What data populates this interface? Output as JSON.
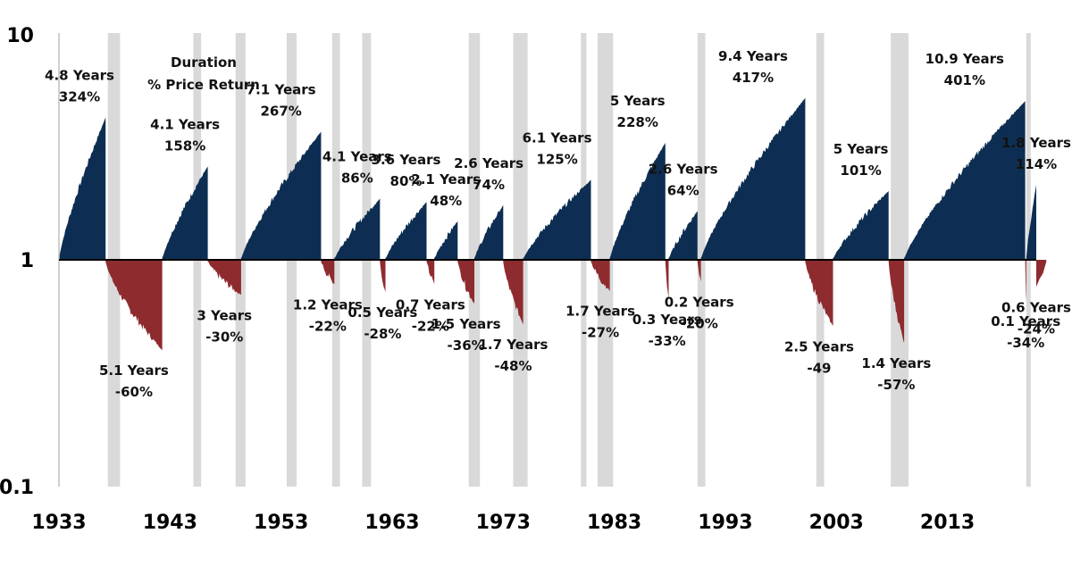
{
  "chart_data": {
    "type": "area",
    "title": "",
    "xlabel": "",
    "ylabel": "",
    "scale": "log",
    "baseline": 1,
    "ylim": [
      0.1,
      10
    ],
    "xlim": [
      1933,
      2021
    ],
    "yticks": [
      {
        "value": 10,
        "label": "10"
      },
      {
        "value": 1,
        "label": "1"
      },
      {
        "value": 0.1,
        "label": "0.1"
      }
    ],
    "xticks": [
      {
        "value": 1933,
        "label": "1933"
      },
      {
        "value": 1943,
        "label": "1943"
      },
      {
        "value": 1953,
        "label": "1953"
      },
      {
        "value": 1963,
        "label": "1963"
      },
      {
        "value": 1973,
        "label": "1973"
      },
      {
        "value": 1983,
        "label": "1983"
      },
      {
        "value": 1993,
        "label": "1993"
      },
      {
        "value": 2003,
        "label": "2003"
      },
      {
        "value": 2013,
        "label": "2013"
      }
    ],
    "colors": {
      "bull": "#0d2e52",
      "bear": "#8e2b2f",
      "recession": "#d9d9d9",
      "axis": "#000000"
    },
    "recessions": [
      [
        1937.4,
        1938.5
      ],
      [
        1945.1,
        1945.8
      ],
      [
        1948.9,
        1949.8
      ],
      [
        1953.5,
        1954.4
      ],
      [
        1957.6,
        1958.3
      ],
      [
        1960.3,
        1961.1
      ],
      [
        1969.9,
        1970.9
      ],
      [
        1973.9,
        1975.2
      ],
      [
        1980.0,
        1980.5
      ],
      [
        1981.5,
        1982.9
      ],
      [
        1990.5,
        1991.2
      ],
      [
        2001.2,
        2001.9
      ],
      [
        2007.9,
        2009.5
      ],
      [
        2020.1,
        2020.5
      ]
    ],
    "legend_title": [
      "Duration",
      "% Price Return"
    ],
    "cycles": [
      {
        "kind": "bull",
        "start": 1932.5,
        "end": 1937.2,
        "peak": 4.24,
        "duration": "4.8 Years",
        "change": "324%"
      },
      {
        "kind": "bear",
        "start": 1937.2,
        "end": 1942.3,
        "trough": 0.4,
        "duration": "5.1 Years",
        "change": "-60%"
      },
      {
        "kind": "bull",
        "start": 1942.3,
        "end": 1946.4,
        "peak": 2.58,
        "duration": "4.1 Years",
        "change": "158%"
      },
      {
        "kind": "bear",
        "start": 1946.4,
        "end": 1949.4,
        "trough": 0.7,
        "duration": "3 Years",
        "change": "-30%"
      },
      {
        "kind": "bull",
        "start": 1949.4,
        "end": 1956.6,
        "peak": 3.67,
        "duration": "7.1 Years",
        "change": "267%"
      },
      {
        "kind": "bear",
        "start": 1956.6,
        "end": 1957.8,
        "trough": 0.78,
        "duration": "1.2 Years",
        "change": "-22%"
      },
      {
        "kind": "bull",
        "start": 1957.8,
        "end": 1961.9,
        "peak": 1.86,
        "duration": "4.1 Years",
        "change": "86%"
      },
      {
        "kind": "bear",
        "start": 1961.9,
        "end": 1962.4,
        "trough": 0.72,
        "duration": "0.5 Years",
        "change": "-28%"
      },
      {
        "kind": "bull",
        "start": 1962.4,
        "end": 1966.1,
        "peak": 1.8,
        "duration": "3.6 Years",
        "change": "80%"
      },
      {
        "kind": "bear",
        "start": 1966.1,
        "end": 1966.8,
        "trough": 0.78,
        "duration": "0.7 Years",
        "change": "-22%"
      },
      {
        "kind": "bull",
        "start": 1966.8,
        "end": 1968.9,
        "peak": 1.48,
        "duration": "2.1 Years",
        "change": "48%"
      },
      {
        "kind": "bear",
        "start": 1968.9,
        "end": 1970.4,
        "trough": 0.64,
        "duration": "1.5 Years",
        "change": "-36%"
      },
      {
        "kind": "bull",
        "start": 1970.4,
        "end": 1973.0,
        "peak": 1.74,
        "duration": "2.6 Years",
        "change": "74%"
      },
      {
        "kind": "bear",
        "start": 1973.0,
        "end": 1974.8,
        "trough": 0.52,
        "duration": "1.7 Years",
        "change": "-48%"
      },
      {
        "kind": "bull",
        "start": 1974.8,
        "end": 1980.9,
        "peak": 2.25,
        "duration": "6.1 Years",
        "change": "125%"
      },
      {
        "kind": "bear",
        "start": 1980.9,
        "end": 1982.6,
        "trough": 0.73,
        "duration": "1.7 Years",
        "change": "-27%"
      },
      {
        "kind": "bull",
        "start": 1982.6,
        "end": 1987.6,
        "peak": 3.28,
        "duration": "5 Years",
        "change": "228%"
      },
      {
        "kind": "bear",
        "start": 1987.6,
        "end": 1987.9,
        "trough": 0.67,
        "duration": "0.3 Years",
        "change": "-33%"
      },
      {
        "kind": "bull",
        "start": 1987.9,
        "end": 1990.5,
        "peak": 1.64,
        "duration": "2.6 Years",
        "change": "64%"
      },
      {
        "kind": "bear",
        "start": 1990.5,
        "end": 1990.8,
        "trough": 0.8,
        "duration": "0.2 Years",
        "change": "-20%"
      },
      {
        "kind": "bull",
        "start": 1990.8,
        "end": 2000.2,
        "peak": 5.17,
        "duration": "9.4 Years",
        "change": "417%"
      },
      {
        "kind": "bear",
        "start": 2000.2,
        "end": 2002.7,
        "trough": 0.51,
        "duration": "2.5 Years",
        "change": "-49"
      },
      {
        "kind": "bull",
        "start": 2002.7,
        "end": 2007.7,
        "peak": 2.01,
        "duration": "5 Years",
        "change": "101%"
      },
      {
        "kind": "bear",
        "start": 2007.7,
        "end": 2009.1,
        "trough": 0.43,
        "duration": "1.4 Years",
        "change": "-57%"
      },
      {
        "kind": "bull",
        "start": 2009.1,
        "end": 2020.0,
        "peak": 5.01,
        "duration": "10.9 Years",
        "change": "401%"
      },
      {
        "kind": "bear",
        "start": 2020.0,
        "end": 2020.1,
        "trough": 0.66,
        "duration": "0.1 Years",
        "change": "-34%"
      },
      {
        "kind": "bull",
        "start": 2020.1,
        "end": 2021.9,
        "peak": 2.14,
        "duration": "1.8 Years",
        "change": "114%"
      },
      {
        "kind": "bear",
        "start": 2021.9,
        "end": 2022.5,
        "trough": 0.76,
        "duration": "0.6 Years",
        "change": "-24%"
      }
    ]
  }
}
